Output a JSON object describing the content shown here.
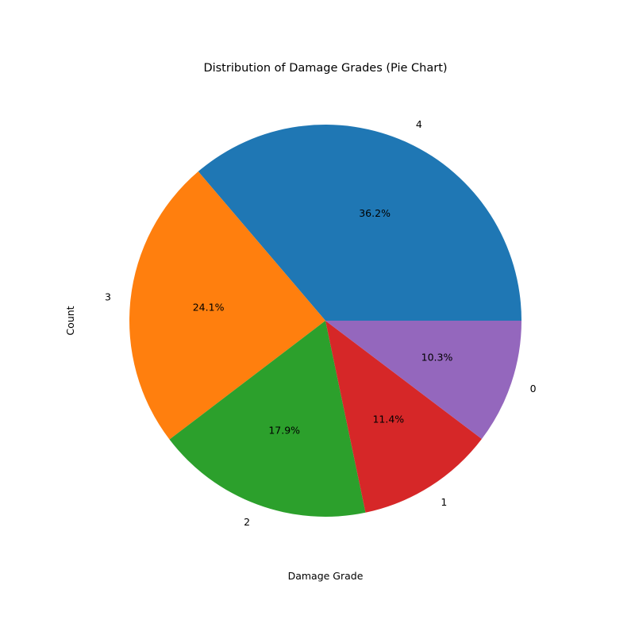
{
  "chart_data": {
    "type": "pie",
    "title": "Distribution of Damage Grades (Pie Chart)",
    "xlabel": "Damage Grade",
    "ylabel": "Count",
    "categories": [
      "4",
      "3",
      "2",
      "1",
      "0"
    ],
    "values": [
      36.2,
      24.1,
      17.9,
      11.4,
      10.3
    ],
    "percent_labels": [
      "36.2%",
      "24.1%",
      "17.9%",
      "11.4%",
      "10.3%"
    ],
    "colors": [
      "#1f77b4",
      "#ff7f0e",
      "#2ca02c",
      "#d62728",
      "#9467bd"
    ],
    "start_angle_deg": 0,
    "direction": "counterclockwise",
    "legend": "none"
  }
}
